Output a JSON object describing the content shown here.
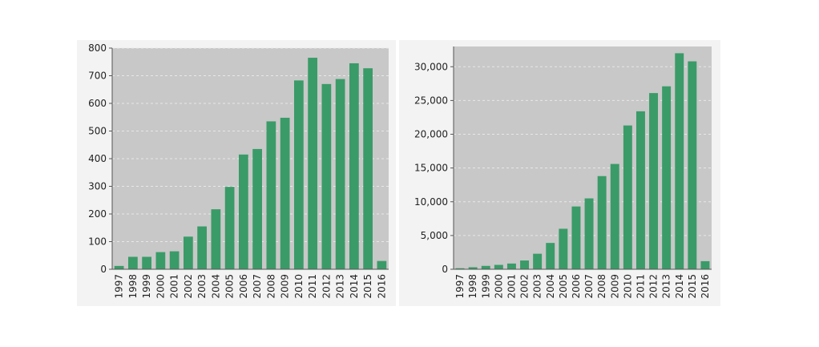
{
  "colors": {
    "bar": "#3a9b68",
    "plot_background": "#c8c8c8",
    "gridline": "#e8e8e8"
  },
  "chart_data": [
    {
      "type": "bar",
      "title": "",
      "xlabel": "",
      "ylabel": "",
      "categories": [
        "1997",
        "1998",
        "1999",
        "2000",
        "2001",
        "2002",
        "2003",
        "2004",
        "2005",
        "2006",
        "2007",
        "2008",
        "2009",
        "2010",
        "2011",
        "2012",
        "2013",
        "2014",
        "2015",
        "2016"
      ],
      "values": [
        12,
        45,
        45,
        62,
        65,
        118,
        155,
        217,
        298,
        415,
        435,
        535,
        548,
        683,
        765,
        670,
        688,
        745,
        727,
        30
      ],
      "ylim": [
        0,
        800
      ],
      "yticks": [
        0,
        100,
        200,
        300,
        400,
        500,
        600,
        700,
        800
      ],
      "ytick_labels": [
        "0",
        "100",
        "200",
        "300",
        "400",
        "500",
        "600",
        "700",
        "800"
      ],
      "grid": true
    },
    {
      "type": "bar",
      "title": "",
      "xlabel": "",
      "ylabel": "",
      "categories": [
        "1997",
        "1998",
        "1999",
        "2000",
        "2001",
        "2002",
        "2003",
        "2004",
        "2005",
        "2006",
        "2007",
        "2008",
        "2009",
        "2010",
        "2011",
        "2012",
        "2013",
        "2014",
        "2015",
        "2016"
      ],
      "values": [
        150,
        300,
        500,
        650,
        850,
        1300,
        2300,
        3900,
        6000,
        9300,
        10500,
        13800,
        15600,
        21300,
        23400,
        26100,
        27100,
        32000,
        30800,
        1200
      ],
      "ylim": [
        0,
        33000
      ],
      "yticks": [
        0,
        5000,
        10000,
        15000,
        20000,
        25000,
        30000
      ],
      "ytick_labels": [
        "0",
        "5,000",
        "10,000",
        "15,000",
        "20,000",
        "25,000",
        "30,000"
      ],
      "grid": true
    }
  ]
}
